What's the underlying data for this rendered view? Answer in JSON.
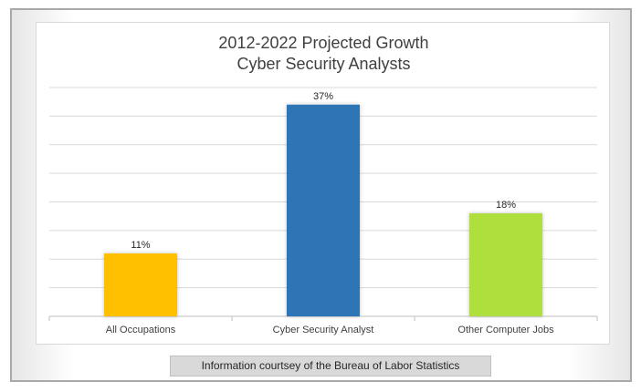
{
  "chart_data": {
    "type": "bar",
    "title_lines": [
      "2012-2022 Projected Growth",
      "Cyber Security Analysts"
    ],
    "categories": [
      "All Occupations",
      "Cyber Security Analyst",
      "Other Computer Jobs"
    ],
    "values": [
      11,
      37,
      18
    ],
    "data_labels": [
      "11%",
      "37%",
      "18%"
    ],
    "colors": [
      "#FFC000",
      "#2E75B6",
      "#AEDF3C"
    ],
    "ylim": [
      0,
      40
    ],
    "gridlines": true,
    "legend": "none"
  },
  "footer": {
    "source": "Information courtsey of the Bureau of Labor Statistics"
  }
}
